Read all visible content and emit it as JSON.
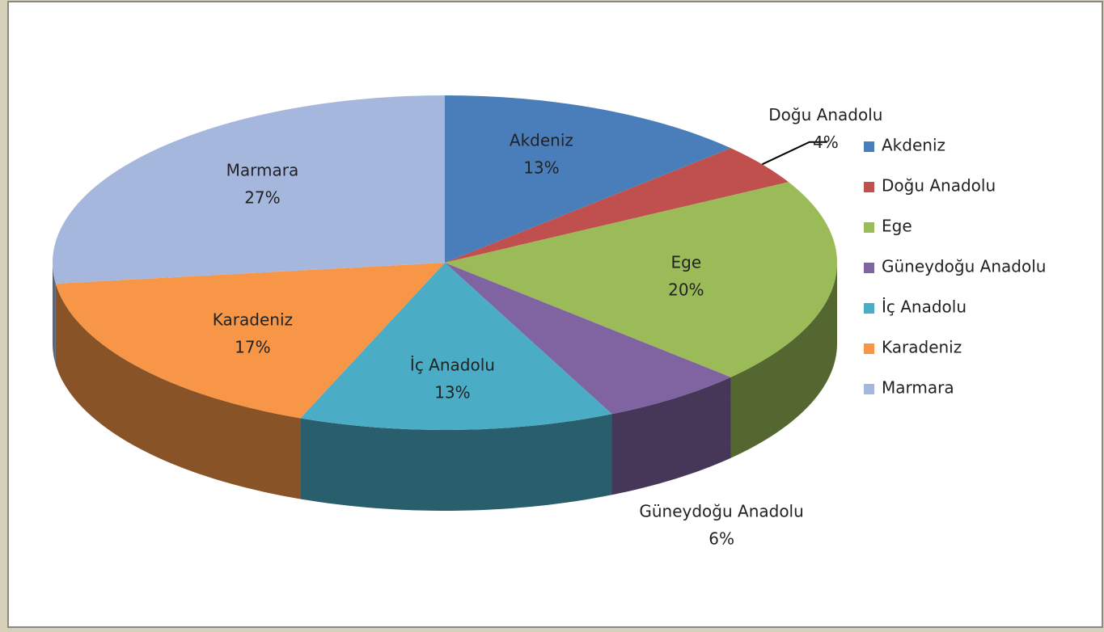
{
  "chart_data": {
    "type": "pie",
    "categories": [
      "Akdeniz",
      "Doğu Anadolu",
      "Ege",
      "Güneydoğu Anadolu",
      "İç Anadolu",
      "Karadeniz",
      "Marmara"
    ],
    "values": [
      13,
      4,
      20,
      6,
      13,
      17,
      27
    ],
    "value_labels": [
      "13%",
      "4%",
      "20%",
      "6%",
      "13%",
      "17%",
      "27%"
    ],
    "colors": [
      "#4a7ebb",
      "#c0504d",
      "#9bbb59",
      "#8064a2",
      "#4bacc6",
      "#f79646",
      "#a6b7de"
    ],
    "legend": "right"
  }
}
